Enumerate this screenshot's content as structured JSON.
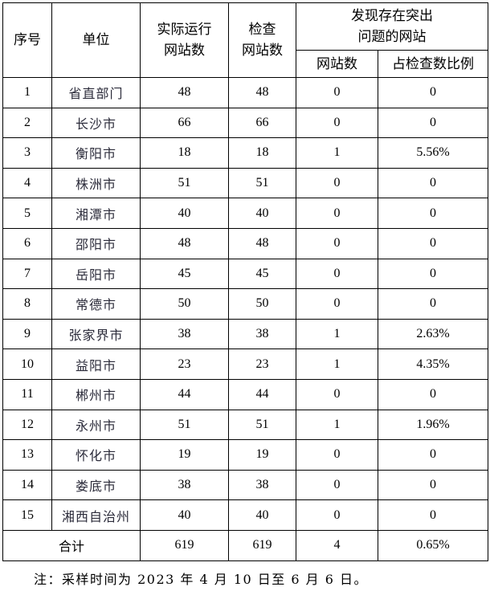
{
  "headers": {
    "index": "序号",
    "unit": "单位",
    "running": "实际运行\n网站数",
    "checked": "检查\n网站数",
    "problem_group": "发现存在突出\n问题的网站",
    "problem_count": "网站数",
    "problem_ratio": "占检查数比例"
  },
  "rows": [
    {
      "index": "1",
      "unit": "省直部门",
      "running": "48",
      "checked": "48",
      "problem": "0",
      "ratio": "0"
    },
    {
      "index": "2",
      "unit": "长沙市",
      "running": "66",
      "checked": "66",
      "problem": "0",
      "ratio": "0"
    },
    {
      "index": "3",
      "unit": "衡阳市",
      "running": "18",
      "checked": "18",
      "problem": "1",
      "ratio": "5.56%"
    },
    {
      "index": "4",
      "unit": "株洲市",
      "running": "51",
      "checked": "51",
      "problem": "0",
      "ratio": "0"
    },
    {
      "index": "5",
      "unit": "湘潭市",
      "running": "40",
      "checked": "40",
      "problem": "0",
      "ratio": "0"
    },
    {
      "index": "6",
      "unit": "邵阳市",
      "running": "48",
      "checked": "48",
      "problem": "0",
      "ratio": "0"
    },
    {
      "index": "7",
      "unit": "岳阳市",
      "running": "45",
      "checked": "45",
      "problem": "0",
      "ratio": "0"
    },
    {
      "index": "8",
      "unit": "常德市",
      "running": "50",
      "checked": "50",
      "problem": "0",
      "ratio": "0"
    },
    {
      "index": "9",
      "unit": "张家界市",
      "running": "38",
      "checked": "38",
      "problem": "1",
      "ratio": "2.63%"
    },
    {
      "index": "10",
      "unit": "益阳市",
      "running": "23",
      "checked": "23",
      "problem": "1",
      "ratio": "4.35%"
    },
    {
      "index": "11",
      "unit": "郴州市",
      "running": "44",
      "checked": "44",
      "problem": "0",
      "ratio": "0"
    },
    {
      "index": "12",
      "unit": "永州市",
      "running": "51",
      "checked": "51",
      "problem": "1",
      "ratio": "1.96%"
    },
    {
      "index": "13",
      "unit": "怀化市",
      "running": "19",
      "checked": "19",
      "problem": "0",
      "ratio": "0"
    },
    {
      "index": "14",
      "unit": "娄底市",
      "running": "38",
      "checked": "38",
      "problem": "0",
      "ratio": "0"
    },
    {
      "index": "15",
      "unit": "湘西自治州",
      "running": "40",
      "checked": "40",
      "problem": "0",
      "ratio": "0"
    }
  ],
  "total": {
    "label": "合计",
    "running": "619",
    "checked": "619",
    "problem": "4",
    "ratio": "0.65%"
  },
  "note": "注：采样时间为 2023 年 4 月 10 日至 6 月 6 日。"
}
